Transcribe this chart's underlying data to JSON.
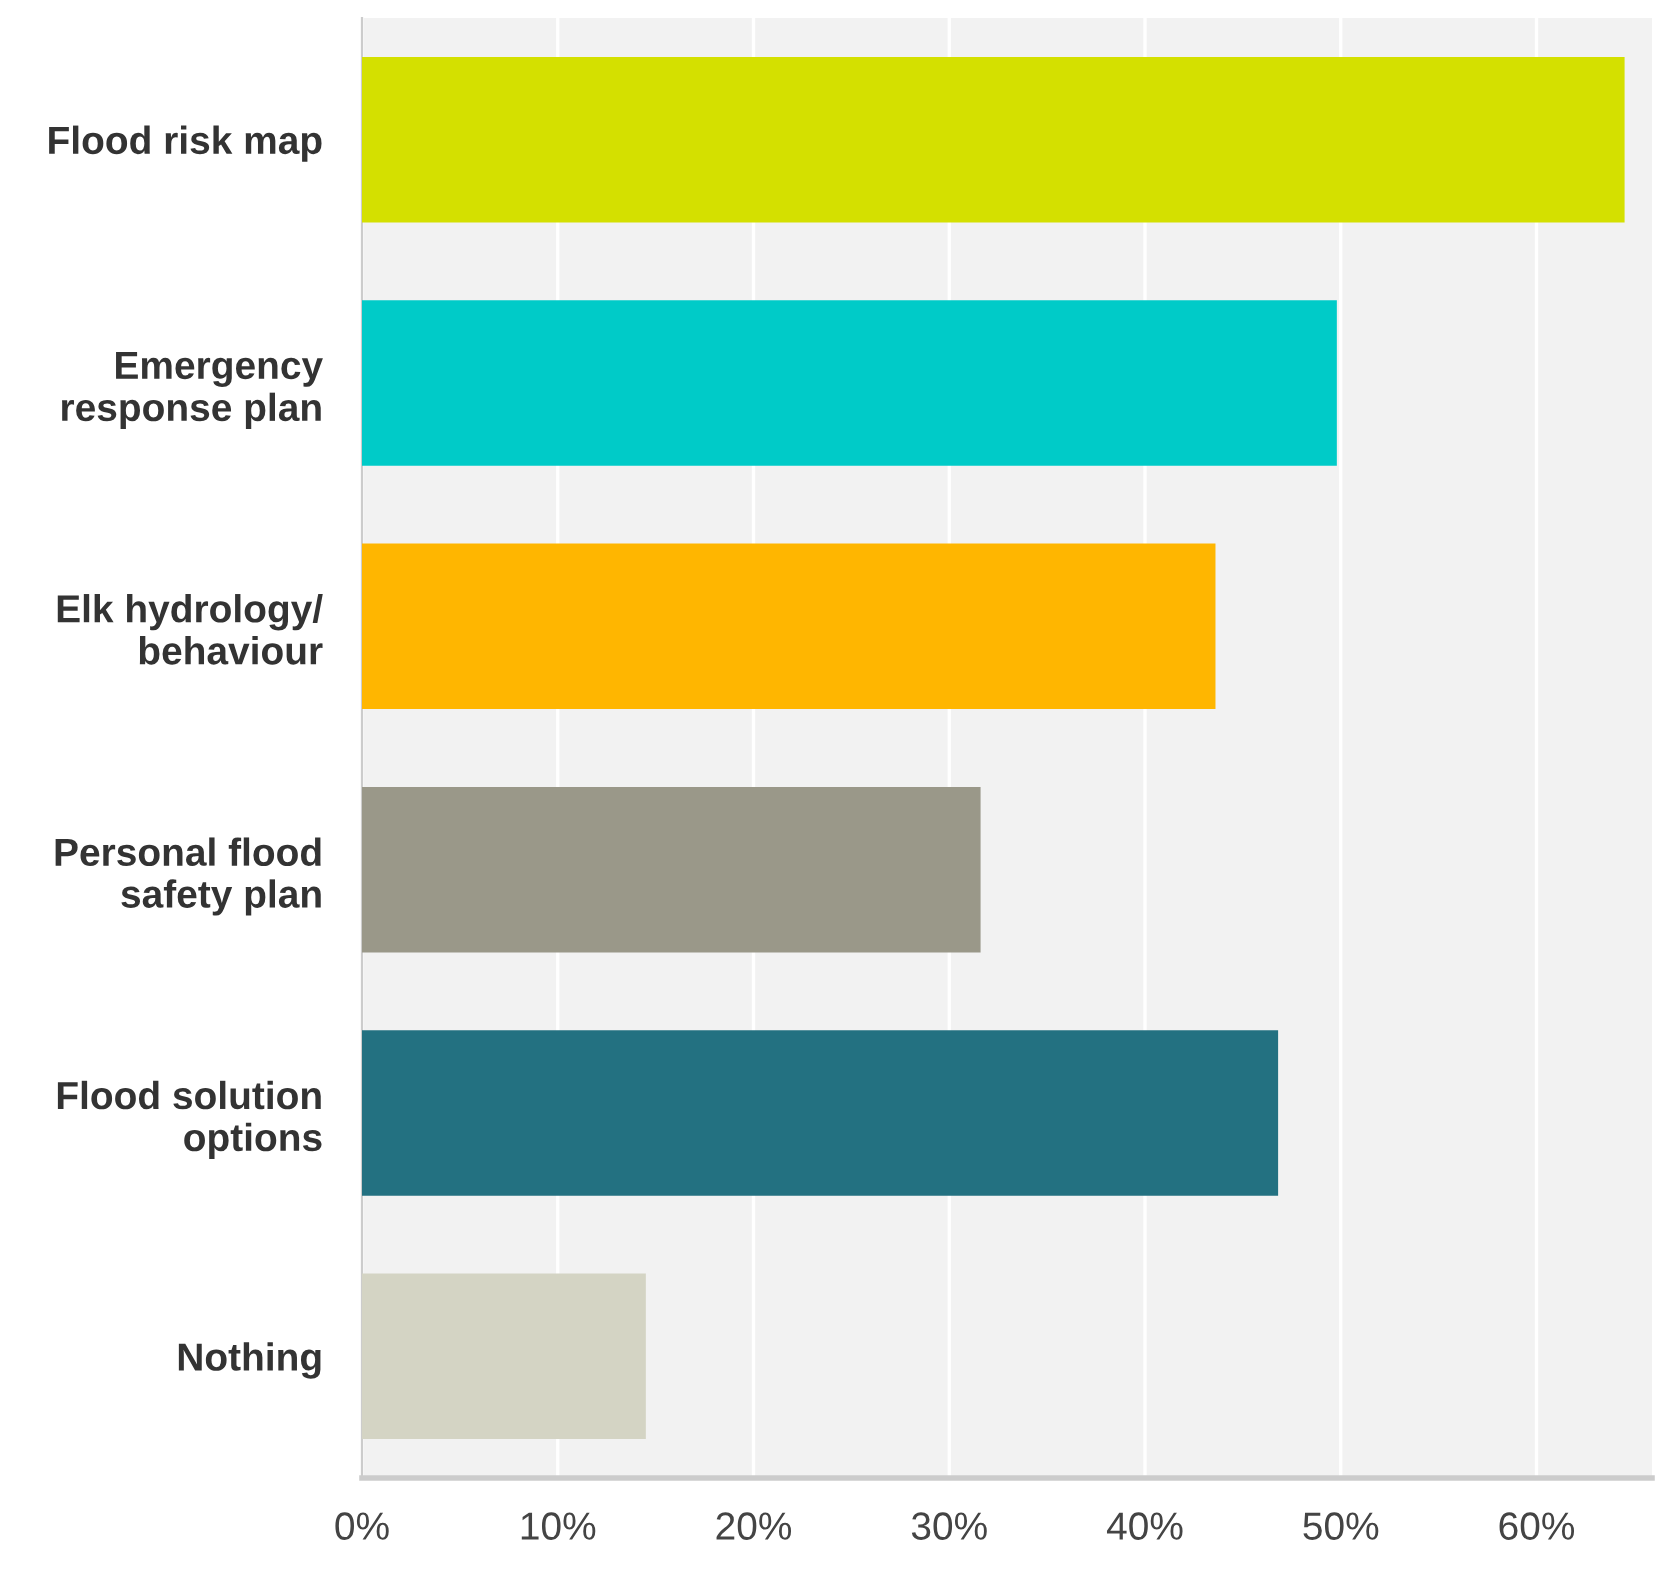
{
  "chart_data": {
    "type": "bar",
    "orientation": "horizontal",
    "categories": [
      "Flood risk map",
      "Emergency\nresponse plan",
      "Elk hydrology/\nbehaviour",
      "Personal flood\nsafety plan",
      "Flood solution\noptions",
      "Nothing"
    ],
    "values": [
      64.5,
      49.8,
      43.6,
      31.6,
      46.8,
      14.5
    ],
    "colors": [
      "#d4e000",
      "#00cbc8",
      "#ffb600",
      "#9a9889",
      "#237181",
      "#d4d4c4"
    ],
    "xlim": [
      0,
      65.9
    ],
    "xticks": [
      {
        "value": 0,
        "label": "0%"
      },
      {
        "value": 10,
        "label": "10%"
      },
      {
        "value": 20,
        "label": "20%"
      },
      {
        "value": 30,
        "label": "30%"
      },
      {
        "value": 40,
        "label": "40%"
      },
      {
        "value": 50,
        "label": "50%"
      },
      {
        "value": 60,
        "label": "60%"
      }
    ],
    "grid": "x"
  }
}
